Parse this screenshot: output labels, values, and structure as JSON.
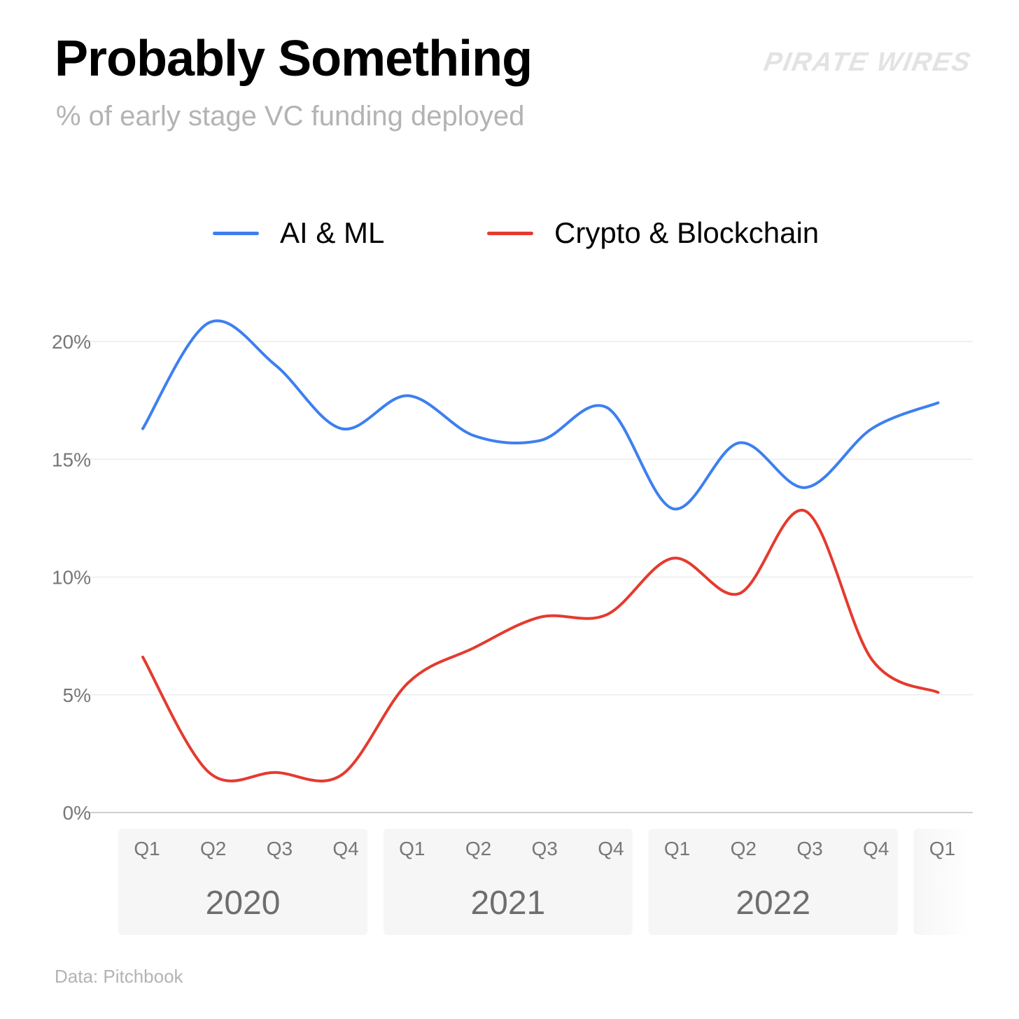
{
  "header": {
    "title": "Probably Something",
    "subtitle": "% of early stage VC funding deployed",
    "brand": "PIRATE WIRES"
  },
  "footer": {
    "source": "Data: Pitchbook"
  },
  "colors": {
    "ai": "#3d7ff0",
    "crypto": "#e53a2f",
    "grid": "#ececec",
    "axis": "#cfcfcf",
    "year_band": "#f6f6f6"
  },
  "chart_data": {
    "type": "line",
    "title": "Probably Something",
    "subtitle": "% of early stage VC funding deployed",
    "xlabel": "",
    "ylabel": "",
    "ylim": [
      0,
      20
    ],
    "y_ticks": [
      "0%",
      "5%",
      "10%",
      "15%",
      "20%"
    ],
    "y_tick_values": [
      0,
      5,
      10,
      15,
      20
    ],
    "legend_position": "top-center",
    "categories": [
      "Q1",
      "Q2",
      "Q3",
      "Q4",
      "Q1",
      "Q2",
      "Q3",
      "Q4",
      "Q1",
      "Q2",
      "Q3",
      "Q4",
      "Q1"
    ],
    "years": [
      {
        "label": "2020",
        "quarters": 4
      },
      {
        "label": "2021",
        "quarters": 4
      },
      {
        "label": "2022",
        "quarters": 4
      },
      {
        "label": "",
        "quarters": 1
      }
    ],
    "series": [
      {
        "name": "AI & ML",
        "color": "#3d7ff0",
        "values": [
          16.3,
          20.8,
          19.0,
          16.3,
          17.7,
          16.0,
          15.8,
          17.2,
          12.9,
          15.7,
          13.8,
          16.3,
          17.4
        ]
      },
      {
        "name": "Crypto & Blockchain",
        "color": "#e53a2f",
        "values": [
          6.6,
          1.7,
          1.7,
          1.6,
          5.5,
          7.0,
          8.3,
          8.4,
          10.8,
          9.3,
          12.8,
          6.5,
          5.1
        ]
      }
    ]
  }
}
